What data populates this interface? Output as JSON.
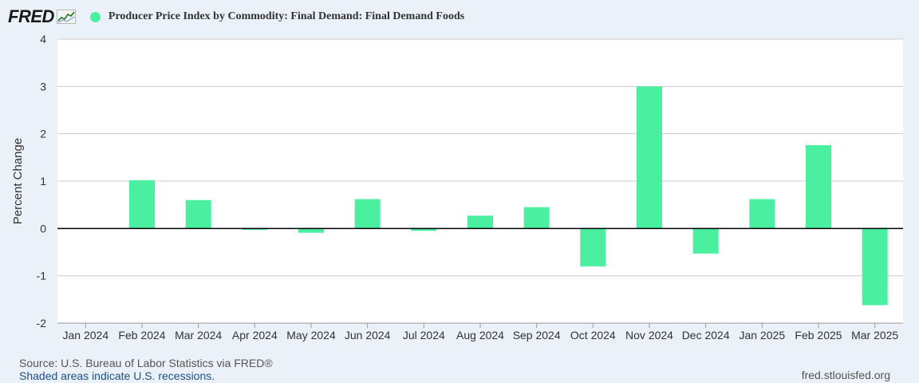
{
  "header": {
    "logo_text": "FRED",
    "logo_icon": "chart-line-icon",
    "series_title": "Producer Price Index by Commodity: Final Demand: Final Demand Foods"
  },
  "colors": {
    "bar": "#4af0a0",
    "zero_line": "#000000",
    "grid": "#cccccc",
    "background": "#eaf1f8",
    "plot_background": "#ffffff"
  },
  "chart_data": {
    "type": "bar",
    "title": "Producer Price Index by Commodity: Final Demand: Final Demand Foods",
    "xlabel": "",
    "ylabel": "Percent Change",
    "ylim": [
      -2,
      4
    ],
    "yticks": [
      "4",
      "3",
      "2",
      "1",
      "0",
      "-1",
      "-2"
    ],
    "grid": true,
    "categories": [
      "Jan 2024",
      "Feb 2024",
      "Mar 2024",
      "Apr 2024",
      "May 2024",
      "Jun 2024",
      "Jul 2024",
      "Aug 2024",
      "Sep 2024",
      "Oct 2024",
      "Nov 2024",
      "Dec 2024",
      "Jan 2025",
      "Feb 2025",
      "Mar 2025"
    ],
    "series": [
      {
        "values": [
          0.0,
          1.02,
          0.6,
          -0.03,
          -0.09,
          0.62,
          -0.05,
          0.27,
          0.45,
          -0.8,
          3.0,
          -0.53,
          0.62,
          1.76,
          -1.62
        ]
      }
    ]
  },
  "footer": {
    "source": "Source: U.S. Bureau of Labor Statistics via FRED®",
    "recession_note": "Shaded areas indicate U.S. recessions.",
    "site": "fred.stlouisfed.org"
  }
}
